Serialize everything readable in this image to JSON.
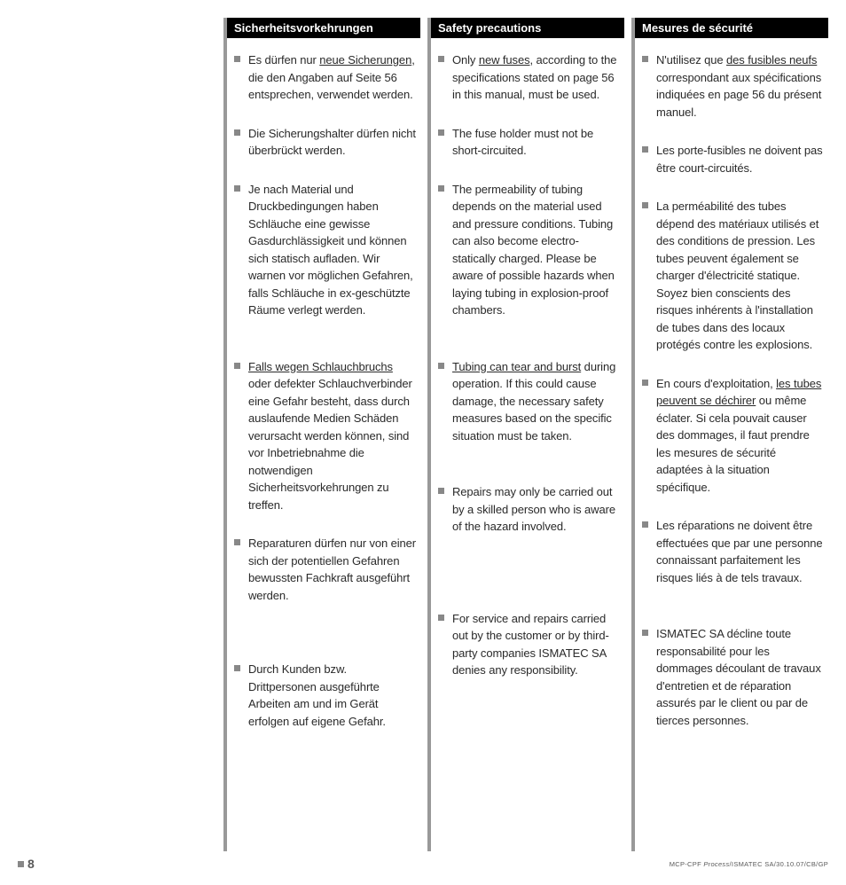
{
  "page_number": "8",
  "footer_prefix": "MCP-CPF ",
  "footer_italic": "Process",
  "footer_suffix": "/ISMATEC SA/30.10.07/CB/GP",
  "columns": [
    {
      "header": "Sicherheitsvorkehrungen",
      "items": [
        "Es dürfen nur <u>neue Sicherungen</u>, die den Angaben auf Seite 56 entsprechen, verwendet werden.",
        "Die Sicherungshalter dürfen nicht überbrückt werden.",
        "Je nach Material und Druckbedingungen haben Schläuche eine gewisse Gasdurchlässigkeit und können sich statisch aufladen. Wir warnen vor möglichen Gefahren, falls Schläuche in ex-geschützte Räume verlegt werden.",
        "<u>Falls wegen Schlauchbruchs</u> oder defekter Schlauchverbinder eine Gefahr besteht, dass durch auslaufende Medien Schäden verursacht werden können, sind vor Inbetriebnahme die notwendigen Sicherheitsvorkehrungen zu treffen.",
        "Reparaturen dürfen nur von einer sich der potentiellen Gefahren bewussten Fachkraft ausgeführt werden.",
        "Durch Kunden bzw. Drittpersonen ausgeführte Arbeiten am und im Gerät erfolgen auf eigene Gefahr."
      ]
    },
    {
      "header": "Safety precautions",
      "items": [
        "Only <u>new fuses,</u> according to the specifications stated on page 56 in this manual, must be used.",
        "The fuse holder must not be short-circuited.",
        "The permeability of tubing depends on the material used and pressure conditions. Tubing can also become electro-statically charged. Please be aware of possible hazards when laying tubing in explosion-proof chambers.",
        "<u>Tubing can tear and burst</u> during operation. If this could cause damage, the necessary safety measures based on the specific situation must be taken.",
        "Repairs may only be carried out by a skilled person who is aware of the hazard involved.",
        "For service and repairs carried out by the customer or by third-party companies ISMATEC SA denies any responsibility."
      ]
    },
    {
      "header": "Mesures de sécurité",
      "items": [
        "N'utilisez que <u>des fusibles neufs</u> correspondant aux spécifications indiquées en page 56 du présent manuel.",
        "Les porte-fusibles ne doivent pas être court-circuités.",
        "La perméabilité des tubes  dépend des matériaux utilisés et des conditions de pression. Les tubes peuvent également se charger d'électricité statique. Soyez bien conscients des risques inhérents à l'installation de tubes dans des locaux protégés contre les explosions.",
        "En cours d'exploitation, <u>les tubes peuvent se déchirer</u> ou même éclater. Si cela pouvait causer des dommages, il faut prendre les mesures de sécurité adaptées à la situation spécifique.",
        "Les réparations ne doivent être effectuées que par une personne connaissant parfaitement les risques liés à de tels travaux.",
        "ISMATEC SA décline toute responsabilité pour les dommages découlant de travaux d'entretien et de réparation assurés par le client ou par de tierces personnes."
      ]
    }
  ]
}
